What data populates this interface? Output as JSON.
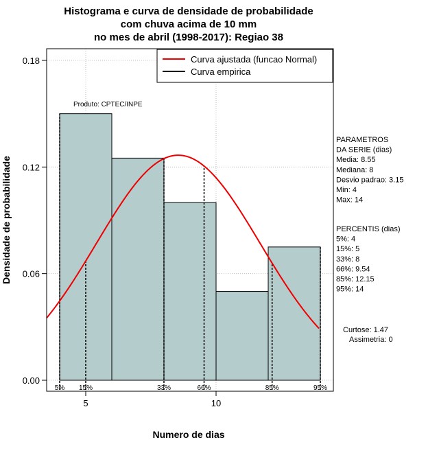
{
  "chart_data": {
    "type": "bar",
    "title": [
      "Histograma e curva de densidade de probabilidade",
      "com chuva acima de 10 mm",
      "no mes de abril (1998-2017): Regiao 38"
    ],
    "xlabel": "Numero de dias",
    "ylabel": "Densidade de probabilidade",
    "xlim": [
      3.5,
      14.5
    ],
    "ylim": [
      0,
      0.18
    ],
    "x_ticks": [
      5,
      10
    ],
    "y_ticks": [
      0.0,
      0.06,
      0.12,
      0.18
    ],
    "y_tick_labels": [
      "0.00",
      "0.06",
      "0.12",
      "0.18"
    ],
    "bins": [
      {
        "x0": 4,
        "x1": 6,
        "density": 0.15
      },
      {
        "x0": 6,
        "x1": 8,
        "density": 0.125
      },
      {
        "x0": 8,
        "x1": 10,
        "density": 0.1
      },
      {
        "x0": 10,
        "x1": 12,
        "density": 0.05
      },
      {
        "x0": 12,
        "x1": 14,
        "density": 0.075
      }
    ],
    "bar_color": "#b4cccc",
    "curve": {
      "name": "Curva ajustada (funcao Normal)",
      "distribution": "normal",
      "mean": 8.55,
      "sd": 3.15,
      "color": "#ee0000"
    },
    "empirical_name": "Curva empirica",
    "percentiles": [
      {
        "label": "5%",
        "x": 4
      },
      {
        "label": "15%",
        "x": 5
      },
      {
        "label": "33%",
        "x": 8
      },
      {
        "label": "66%",
        "x": 9.54
      },
      {
        "label": "85%",
        "x": 12.15
      },
      {
        "label": "95%",
        "x": 14
      }
    ],
    "grid": true,
    "legend_position": "top-right",
    "annotation": "Produto: CPTEC/INPE"
  },
  "side_panel": {
    "parametros_lines": [
      "PARAMETROS",
      "DA SERIE (dias)",
      "  Media: 8.55",
      "  Mediana: 8",
      "  Desvio padrao: 3.15",
      "  Min: 4",
      "  Max: 14"
    ],
    "percentis_lines": [
      "PERCENTIS (dias)",
      "  5%: 4",
      "  15%: 5",
      "  33%: 8",
      "  66%: 9.54",
      "  85%: 12.15",
      "  95%: 14"
    ],
    "curtose": "Curtose: 1.47",
    "assimetria": "Assimetria: 0"
  }
}
